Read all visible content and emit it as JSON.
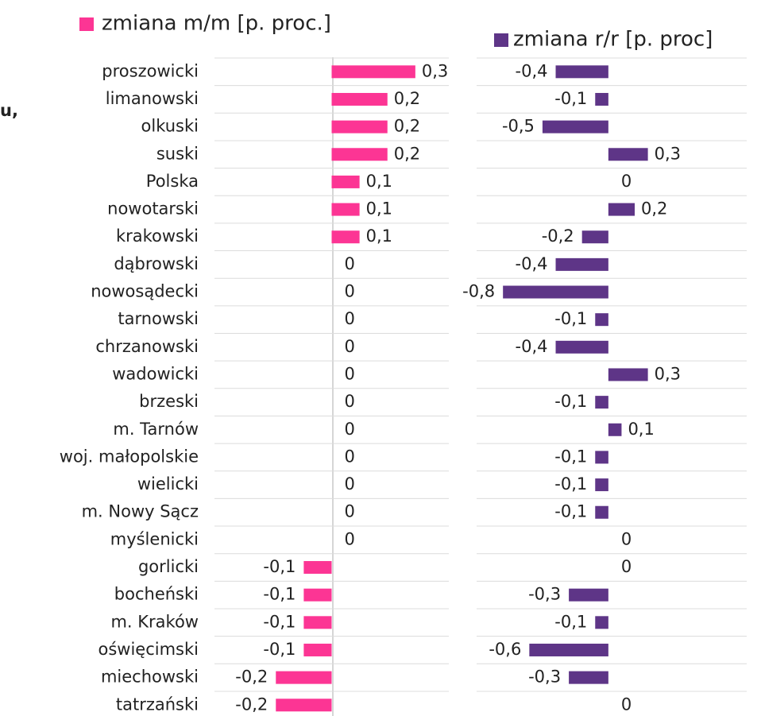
{
  "chart_data": {
    "type": "bar",
    "orientation": "horizontal",
    "annotation": "u,",
    "categories": [
      "proszowicki",
      "limanowski",
      "olkuski",
      "suski",
      "Polska",
      "nowotarski",
      "krakowski",
      "dąbrowski",
      "nowosądecki",
      "tarnowski",
      "chrzanowski",
      "wadowicki",
      "brzeski",
      "m. Tarnów",
      "woj. małopolskie",
      "wielicki",
      "m. Nowy Sącz",
      "myślenicki",
      "gorlicki",
      "bocheński",
      "m. Kraków",
      "oświęcimski",
      "miechowski",
      "tatrzański"
    ],
    "series": [
      {
        "name": "zmiana m/m [p. proc.]",
        "color": "#fc3594",
        "xlim": [
          -0.42,
          0.42
        ],
        "values": [
          0.3,
          0.2,
          0.2,
          0.2,
          0.1,
          0.1,
          0.1,
          0,
          0,
          0,
          0,
          0,
          0,
          0,
          0,
          0,
          0,
          0,
          -0.1,
          -0.1,
          -0.1,
          -0.1,
          -0.2,
          -0.2
        ],
        "value_labels": [
          "0,3",
          "0,2",
          "0,2",
          "0,2",
          "0,1",
          "0,1",
          "0,1",
          "0",
          "0",
          "0",
          "0",
          "0",
          "0",
          "0",
          "0",
          "0",
          "0",
          "0",
          "-0,1",
          "-0,1",
          "-0,1",
          "-0,1",
          "-0,2",
          "-0,2"
        ]
      },
      {
        "name": "zmiana r/r [p. proc]",
        "color": "#5e3587",
        "xlim": [
          -1,
          1.05
        ],
        "values": [
          -0.4,
          -0.1,
          -0.5,
          0.3,
          0,
          0.2,
          -0.2,
          -0.4,
          -0.8,
          -0.1,
          -0.4,
          0.3,
          -0.1,
          0.1,
          -0.1,
          -0.1,
          -0.1,
          0,
          0,
          -0.3,
          -0.1,
          -0.6,
          -0.3,
          0
        ],
        "value_labels": [
          "-0,4",
          "-0,1",
          "-0,5",
          "0,3",
          "0",
          "0,2",
          "-0,2",
          "-0,4",
          "-0,8",
          "-0,1",
          "-0,4",
          "0,3",
          "-0,1",
          "0,1",
          "-0,1",
          "-0,1",
          "-0,1",
          "0",
          "0",
          "-0,3",
          "-0,1",
          "-0,6",
          "-0,3",
          "0"
        ]
      }
    ]
  }
}
